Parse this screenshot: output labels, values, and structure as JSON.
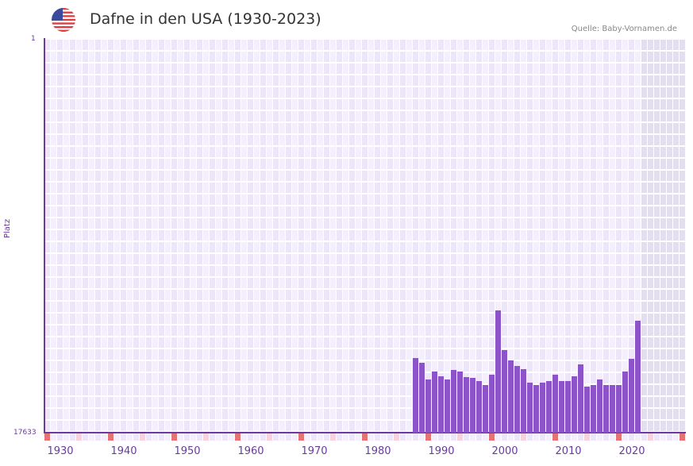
{
  "header": {
    "title": "Dafne in den USA (1930-2023)",
    "source": "Quelle: Baby-Vornamen.de",
    "flag_icon": "us-flag-icon"
  },
  "axis": {
    "y_top": "1",
    "y_bottom": "17633",
    "y_title": "Platz"
  },
  "colors": {
    "bar": "#8c54c8",
    "grid_a": "#f3effb",
    "grid_b": "#ece6f8",
    "future": "#e3dfee",
    "axis": "#6a3aa0",
    "tick_strong": "#e57373",
    "tick_light": "#f5d3dc"
  },
  "chart_data": {
    "type": "bar",
    "title": "Dafne in den USA (1930-2023)",
    "xlabel": "",
    "ylabel": "Platz",
    "ylim": [
      17633,
      1
    ],
    "x_ticks": [
      "1930",
      "1940",
      "1950",
      "1960",
      "1970",
      "1980",
      "1990",
      "2000",
      "2010",
      "2020"
    ],
    "categories": [
      1986,
      1987,
      1988,
      1989,
      1990,
      1991,
      1992,
      1993,
      1994,
      1995,
      1996,
      1997,
      1998,
      1999,
      2000,
      2001,
      2002,
      2003,
      2004,
      2005,
      2006,
      2007,
      2008,
      2009,
      2010,
      2011,
      2012,
      2013,
      2014,
      2015,
      2016,
      2017,
      2018,
      2019,
      2020,
      2021
    ],
    "values": [
      14300,
      14510,
      15260,
      14900,
      15120,
      15260,
      14830,
      14900,
      15150,
      15190,
      15300,
      15510,
      15050,
      12130,
      13940,
      14400,
      14650,
      14800,
      15400,
      15510,
      15400,
      15300,
      15050,
      15330,
      15300,
      15120,
      14580,
      15550,
      15510,
      15260,
      15480,
      15480,
      15480,
      14900,
      14330,
      12620
    ]
  }
}
